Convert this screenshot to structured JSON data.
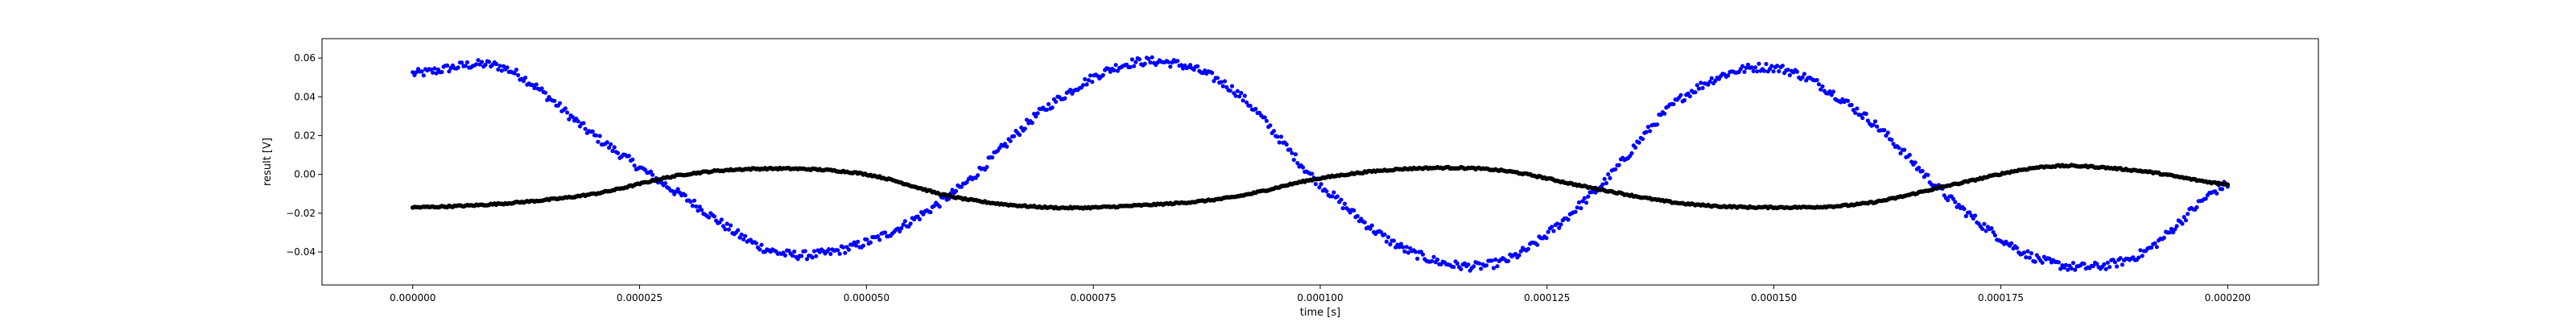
{
  "chart_data": {
    "type": "scatter",
    "title": "",
    "xlabel": "time [s]",
    "ylabel": "result [V]",
    "xlim": [
      -1e-05,
      0.00021
    ],
    "ylim": [
      -0.057,
      0.07
    ],
    "grid": false,
    "legend": "none",
    "x_ticks": [
      0.0,
      2.5e-05,
      5e-05,
      7.5e-05,
      0.0001,
      0.000125,
      0.00015,
      0.000175,
      0.0002
    ],
    "x_tick_labels": [
      "0.000000",
      "0.000025",
      "0.000050",
      "0.000075",
      "0.000100",
      "0.000125",
      "0.000150",
      "0.000175",
      "0.000200"
    ],
    "y_ticks": [
      -0.04,
      -0.02,
      0.0,
      0.02,
      0.04,
      0.06
    ],
    "y_tick_labels": [
      "−0.04",
      "−0.02",
      "0.00",
      "0.02",
      "0.04",
      "0.06"
    ],
    "series": [
      {
        "color": "#0000ff",
        "x": [
          0.0,
          1e-05,
          2e-05,
          3e-05,
          4e-05,
          5e-05,
          6e-05,
          7e-05,
          8e-05,
          9e-05,
          0.0001,
          0.00011,
          0.00012,
          0.00013,
          0.00014,
          0.00015,
          0.00016,
          0.00017,
          0.00018,
          0.00019,
          0.0002
        ],
        "y": [
          0.052,
          0.055,
          0.02,
          -0.012,
          -0.04,
          -0.035,
          -0.008,
          0.035,
          0.058,
          0.045,
          -0.005,
          -0.04,
          -0.045,
          -0.01,
          0.04,
          0.055,
          0.03,
          -0.015,
          -0.045,
          -0.042,
          -0.005
        ]
      },
      {
        "color": "#000000",
        "x": [
          0.0,
          1e-05,
          2e-05,
          3e-05,
          4e-05,
          5e-05,
          6e-05,
          7e-05,
          8e-05,
          9e-05,
          0.0001,
          0.00011,
          0.00012,
          0.00013,
          0.00014,
          0.00015,
          0.00016,
          0.00017,
          0.00018,
          0.00019,
          0.0002
        ],
        "y": [
          -0.017,
          -0.015,
          -0.01,
          0.0,
          0.003,
          0.0,
          -0.012,
          -0.017,
          -0.016,
          -0.012,
          -0.002,
          0.003,
          0.002,
          -0.007,
          -0.015,
          -0.017,
          -0.015,
          -0.005,
          0.004,
          0.002,
          -0.005
        ]
      }
    ]
  }
}
